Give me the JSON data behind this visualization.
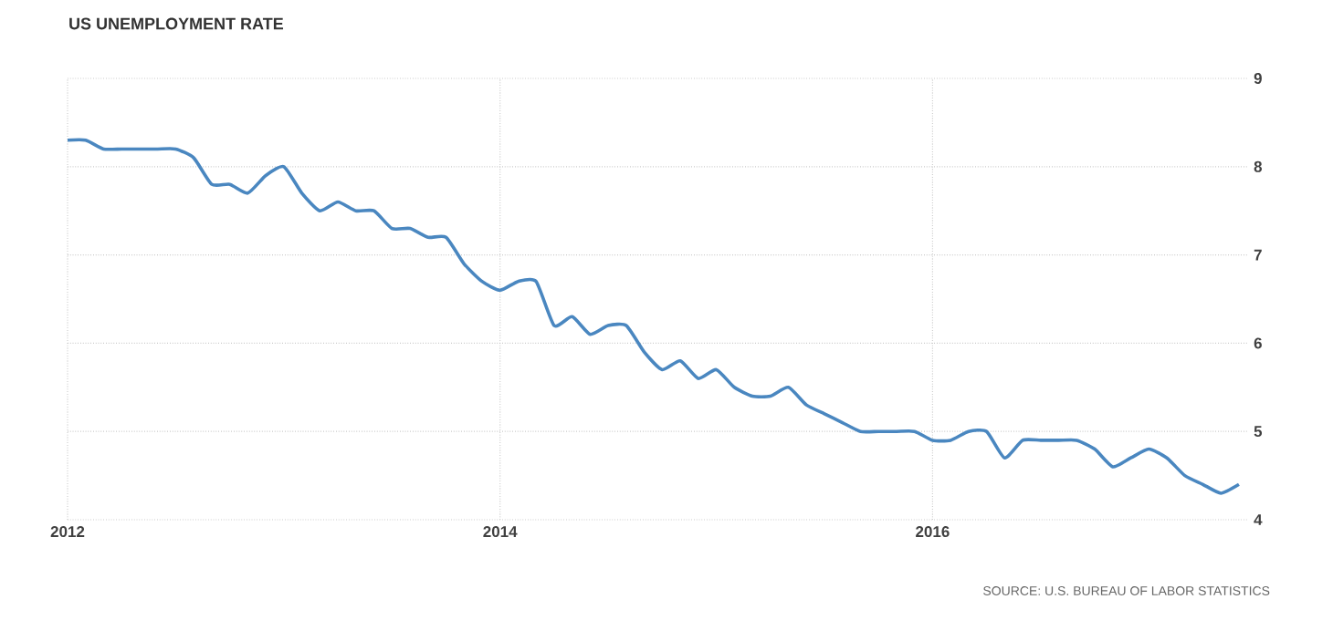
{
  "chart_data": {
    "type": "line",
    "title": "US UNEMPLOYMENT RATE",
    "annotations": [
      "SOURCE: U.S. BUREAU OF LABOR STATISTICS"
    ],
    "x": [
      "2012-01",
      "2012-02",
      "2012-03",
      "2012-04",
      "2012-05",
      "2012-06",
      "2012-07",
      "2012-08",
      "2012-09",
      "2012-10",
      "2012-11",
      "2012-12",
      "2013-01",
      "2013-02",
      "2013-03",
      "2013-04",
      "2013-05",
      "2013-06",
      "2013-07",
      "2013-08",
      "2013-09",
      "2013-10",
      "2013-11",
      "2013-12",
      "2014-01",
      "2014-02",
      "2014-03",
      "2014-04",
      "2014-05",
      "2014-06",
      "2014-07",
      "2014-08",
      "2014-09",
      "2014-10",
      "2014-11",
      "2014-12",
      "2015-01",
      "2015-02",
      "2015-03",
      "2015-04",
      "2015-05",
      "2015-06",
      "2015-07",
      "2015-08",
      "2015-09",
      "2015-10",
      "2015-11",
      "2015-12",
      "2016-01",
      "2016-02",
      "2016-03",
      "2016-04",
      "2016-05",
      "2016-06",
      "2016-07",
      "2016-08",
      "2016-09",
      "2016-10",
      "2016-11",
      "2016-12",
      "2017-01",
      "2017-02",
      "2017-03",
      "2017-04",
      "2017-05",
      "2017-06"
    ],
    "series": [
      {
        "color": "#4a87c0",
        "values": [
          8.3,
          8.3,
          8.2,
          8.2,
          8.2,
          8.2,
          8.2,
          8.1,
          7.8,
          7.8,
          7.7,
          7.9,
          8.0,
          7.7,
          7.5,
          7.6,
          7.5,
          7.5,
          7.3,
          7.3,
          7.2,
          7.2,
          6.9,
          6.7,
          6.6,
          6.7,
          6.7,
          6.2,
          6.3,
          6.1,
          6.2,
          6.2,
          5.9,
          5.7,
          5.8,
          5.6,
          5.7,
          5.5,
          5.4,
          5.4,
          5.5,
          5.3,
          5.2,
          5.1,
          5.0,
          5.0,
          5.0,
          5.0,
          4.9,
          4.9,
          5.0,
          5.0,
          4.7,
          4.9,
          4.9,
          4.9,
          4.9,
          4.8,
          4.6,
          4.7,
          4.8,
          4.7,
          4.5,
          4.4,
          4.3,
          4.4
        ]
      }
    ],
    "xlim": [
      "2012-01",
      "2017-06-15"
    ],
    "xticks": [
      "2012",
      "2014",
      "2016"
    ],
    "ylim": [
      4,
      9
    ],
    "yticks": [
      4,
      5,
      6,
      7,
      8,
      9
    ],
    "grid": true,
    "marker": "none",
    "line_style": "solid"
  }
}
